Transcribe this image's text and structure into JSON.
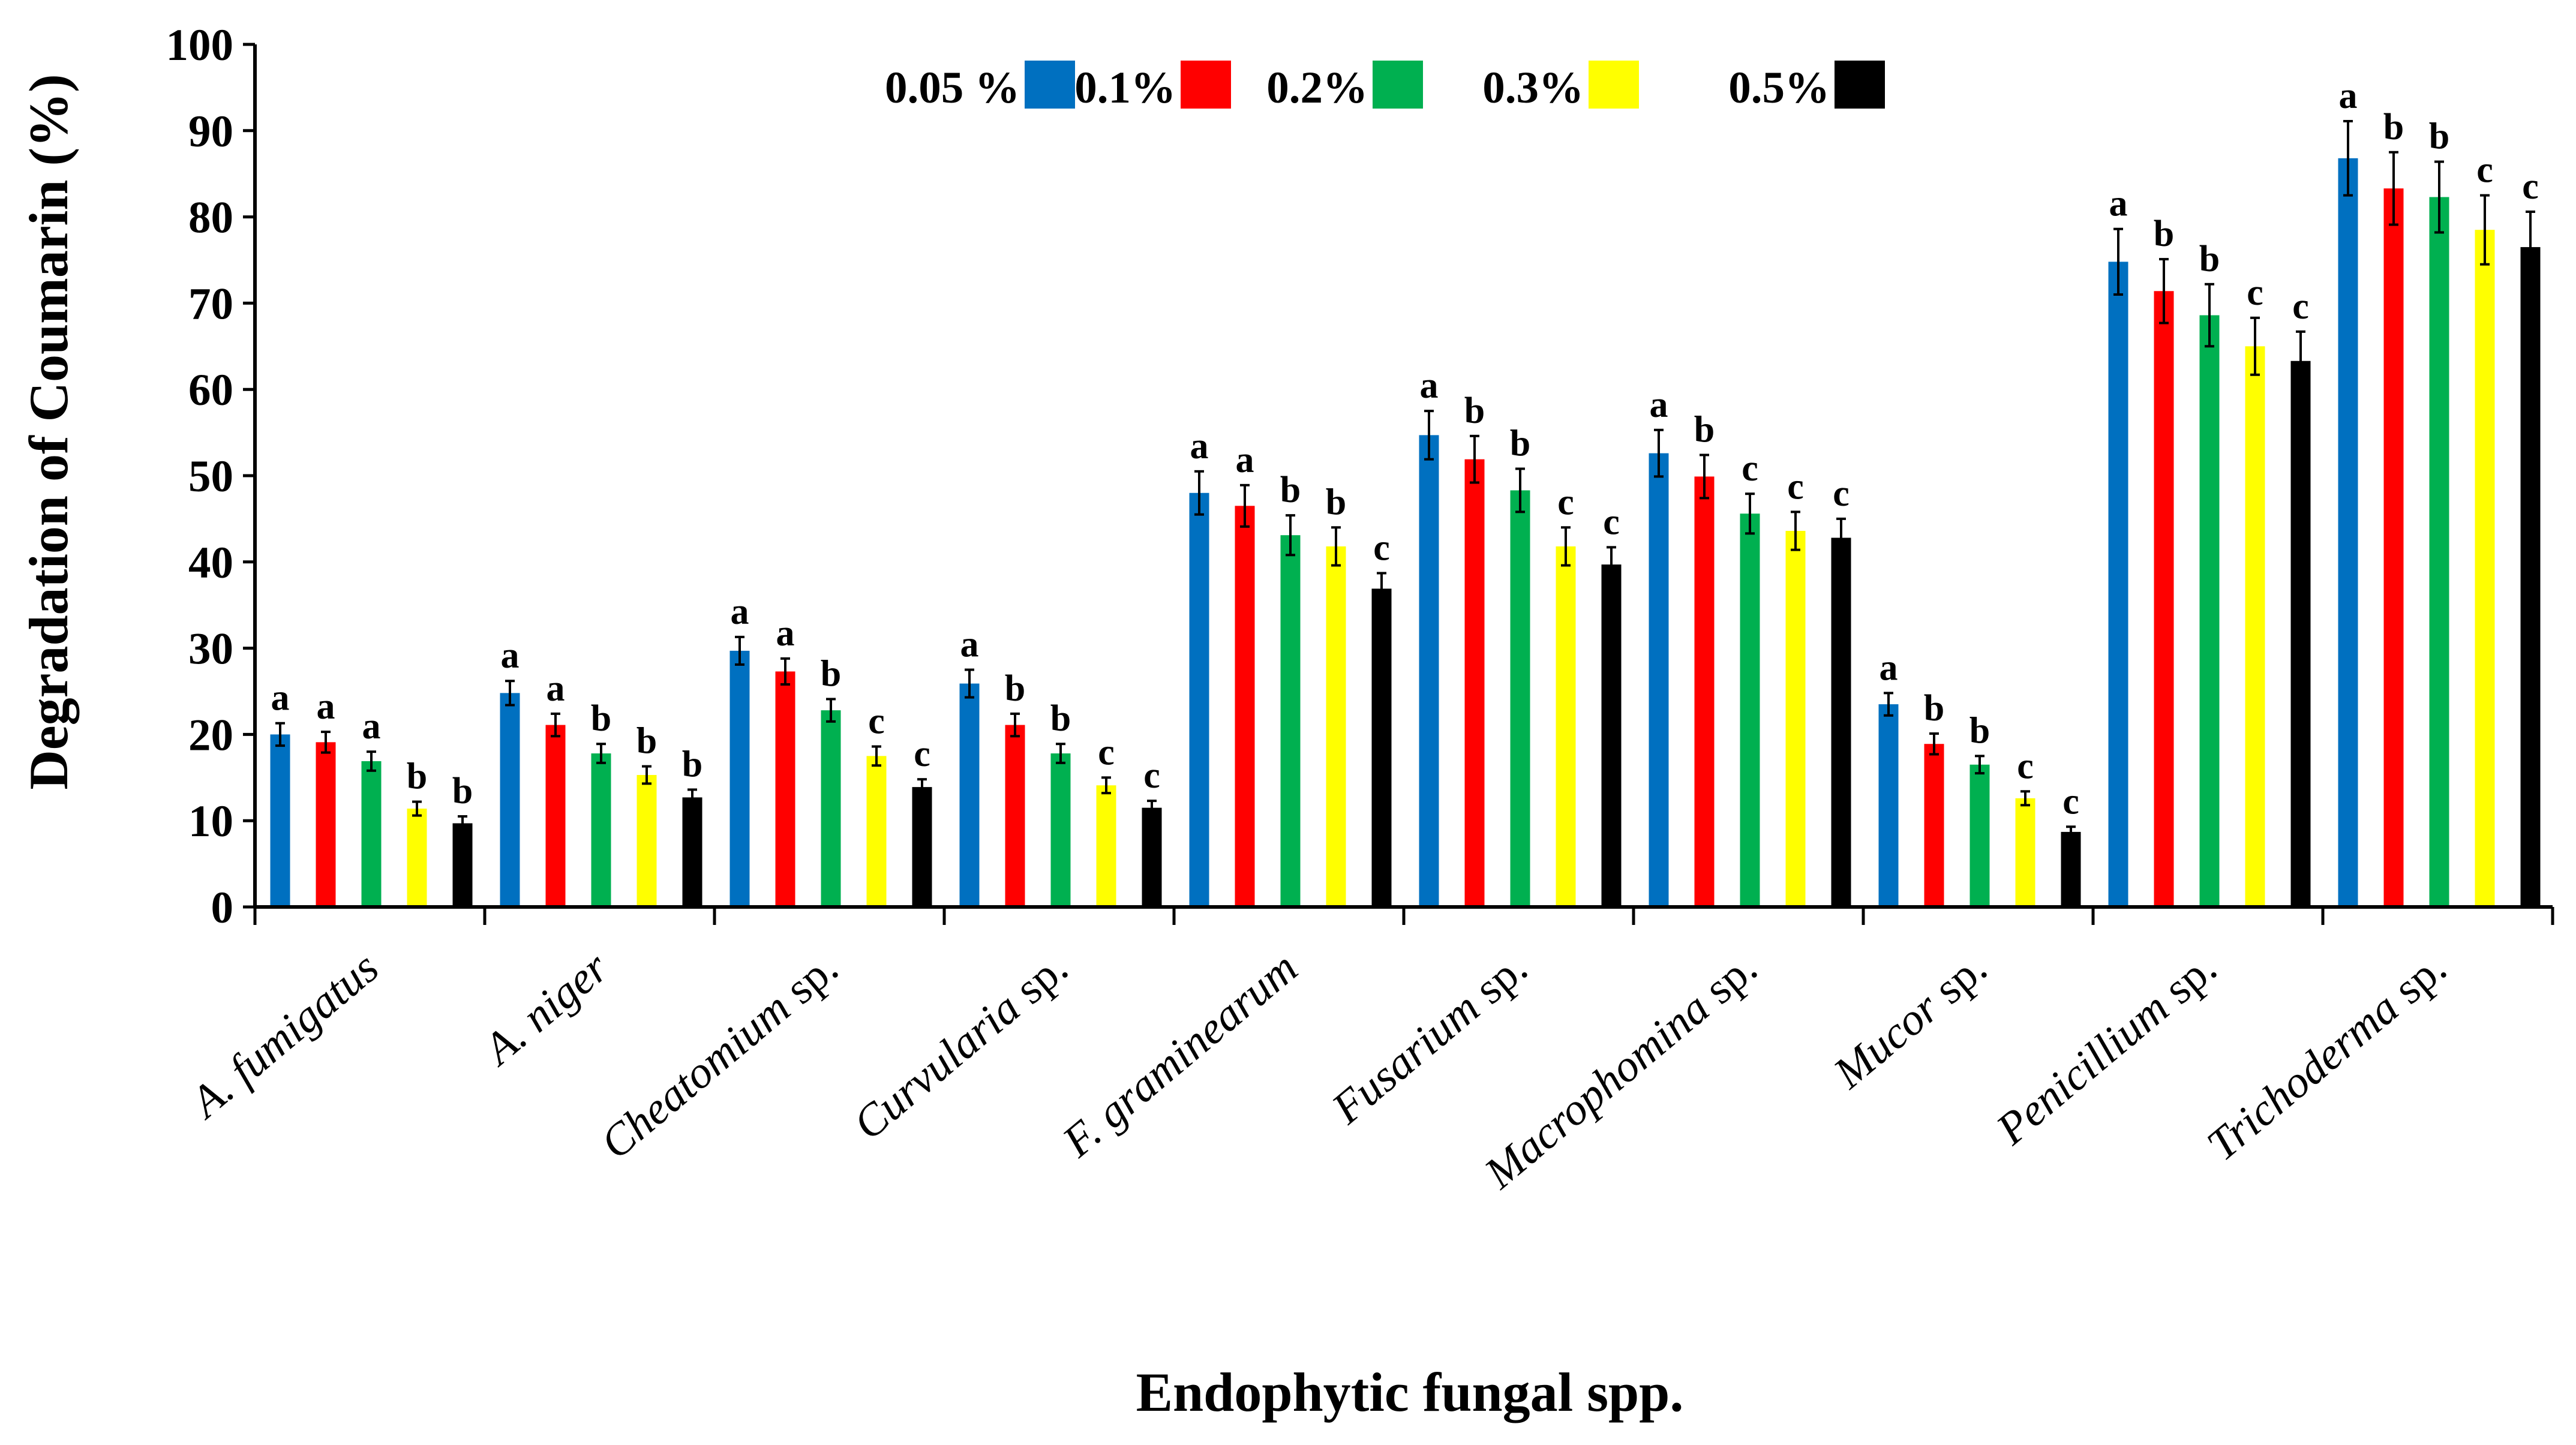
{
  "chart_data": {
    "type": "bar",
    "title": "",
    "xlabel": "Endophytic fungal spp.",
    "ylabel": "Degradation of Coumarin (%)",
    "ylim": [
      0,
      100
    ],
    "yticks": [
      0,
      10,
      20,
      30,
      40,
      50,
      60,
      70,
      80,
      90,
      100
    ],
    "grid": false,
    "legend_position": "top",
    "categories": [
      {
        "italic": "A. fumigatus",
        "upright": ""
      },
      {
        "italic": "A. niger",
        "upright": ""
      },
      {
        "italic": "Cheatomium",
        "upright": " sp."
      },
      {
        "italic": "Curvularia",
        "upright": " sp."
      },
      {
        "italic": "F. graminearum",
        "upright": ""
      },
      {
        "italic": "Fusarium",
        "upright": " sp."
      },
      {
        "italic": "Macrophomina",
        "upright": " sp."
      },
      {
        "italic": "Mucor",
        "upright": " sp."
      },
      {
        "italic": "Penicillium",
        "upright": " sp."
      },
      {
        "italic": "Trichoderma",
        "upright": " sp."
      }
    ],
    "series": [
      {
        "name": "0.05 %",
        "color": "#0070C0",
        "values": [
          20,
          24.8,
          29.7,
          25.9,
          48,
          54.7,
          52.6,
          23.5,
          74.8,
          86.8
        ],
        "errors": [
          1.3,
          1.4,
          1.6,
          1.6,
          2.5,
          2.8,
          2.7,
          1.3,
          3.8,
          4.3
        ],
        "letters": [
          "a",
          "a",
          "a",
          "a",
          "a",
          "a",
          "a",
          "a",
          "a",
          "a"
        ]
      },
      {
        "name": "0.1%",
        "color": "#FF0000",
        "values": [
          19.1,
          21.1,
          27.3,
          21.1,
          46.5,
          51.9,
          49.9,
          18.9,
          71.4,
          83.3
        ],
        "errors": [
          1.2,
          1.3,
          1.5,
          1.3,
          2.4,
          2.7,
          2.5,
          1.2,
          3.7,
          4.2
        ],
        "letters": [
          "a",
          "a",
          "a",
          "b",
          "a",
          "b",
          "b",
          "b",
          "b",
          "b"
        ]
      },
      {
        "name": "0.2%",
        "color": "#00B050",
        "values": [
          16.9,
          17.8,
          22.8,
          17.8,
          43.1,
          48.3,
          45.6,
          16.5,
          68.6,
          82.3
        ],
        "errors": [
          1.1,
          1.1,
          1.3,
          1.1,
          2.3,
          2.5,
          2.3,
          1,
          3.6,
          4.1
        ],
        "letters": [
          "a",
          "b",
          "b",
          "b",
          "b",
          "b",
          "c",
          "b",
          "b",
          "b"
        ]
      },
      {
        "name": "0.3%",
        "color": "#FFFF00",
        "values": [
          11.4,
          15.3,
          17.5,
          14.1,
          41.8,
          41.8,
          43.6,
          12.6,
          65,
          78.5
        ],
        "errors": [
          0.8,
          1,
          1.1,
          0.9,
          2.2,
          2.2,
          2.2,
          0.8,
          3.3,
          4
        ],
        "letters": [
          "b",
          "b",
          "c",
          "c",
          "b",
          "c",
          "c",
          "c",
          "c",
          "c"
        ]
      },
      {
        "name": "0.5%",
        "color": "#000000",
        "values": [
          9.7,
          12.7,
          13.9,
          11.5,
          36.9,
          39.7,
          42.8,
          8.7,
          63.3,
          76.5
        ],
        "errors": [
          0.8,
          0.9,
          0.9,
          0.8,
          1.8,
          2,
          2.2,
          0.6,
          3.4,
          4.1
        ],
        "letters": [
          "b",
          "b",
          "c",
          "c",
          "c",
          "c",
          "c",
          "c",
          "c",
          "c"
        ]
      }
    ]
  }
}
